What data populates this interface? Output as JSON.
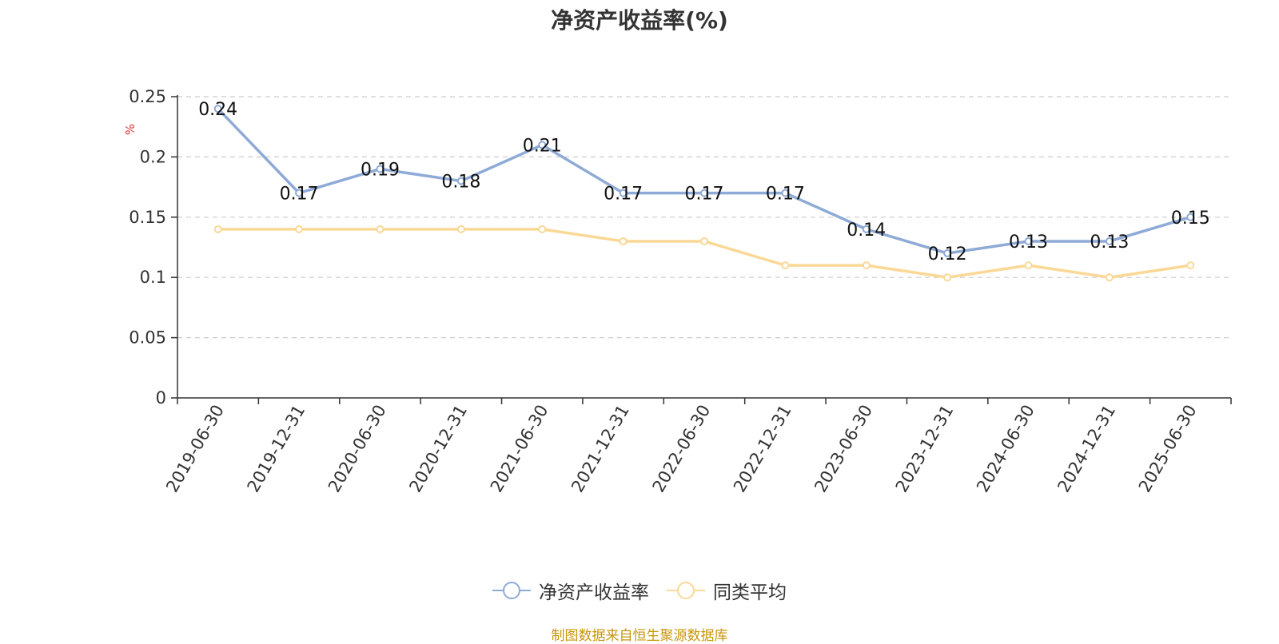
{
  "chart_data": {
    "type": "line",
    "title": "净资产收益率(%)",
    "ylabel": "%",
    "categories": [
      "2019-06-30",
      "2019-12-31",
      "2020-06-30",
      "2020-12-31",
      "2021-06-30",
      "2021-12-31",
      "2022-06-30",
      "2022-12-31",
      "2023-06-30",
      "2023-12-31",
      "2024-06-30",
      "2024-12-31",
      "2025-06-30"
    ],
    "ylim": [
      0,
      0.25
    ],
    "yticks": [
      0,
      0.05,
      0.1,
      0.15,
      0.2,
      0.25
    ],
    "ytick_labels": [
      "0",
      "0.05",
      "0.1",
      "0.15",
      "0.2",
      "0.25"
    ],
    "grid": true,
    "legend_position": "bottom-center",
    "series": [
      {
        "name": "净资产收益率",
        "color": "#8eaad6",
        "values": [
          0.24,
          0.17,
          0.19,
          0.18,
          0.21,
          0.17,
          0.17,
          0.17,
          0.14,
          0.12,
          0.13,
          0.13,
          0.15
        ],
        "labels": [
          "0.24",
          "0.17",
          "0.19",
          "0.18",
          "0.21",
          "0.17",
          "0.17",
          "0.17",
          "0.14",
          "0.12",
          "0.13",
          "0.13",
          "0.15"
        ]
      },
      {
        "name": "同类平均",
        "color": "#fad896",
        "values": [
          0.14,
          0.14,
          0.14,
          0.14,
          0.14,
          0.13,
          0.13,
          0.11,
          0.11,
          0.1,
          0.11,
          0.1,
          0.11
        ]
      }
    ]
  },
  "footer": {
    "source": "制图数据来自恒生聚源数据库"
  }
}
